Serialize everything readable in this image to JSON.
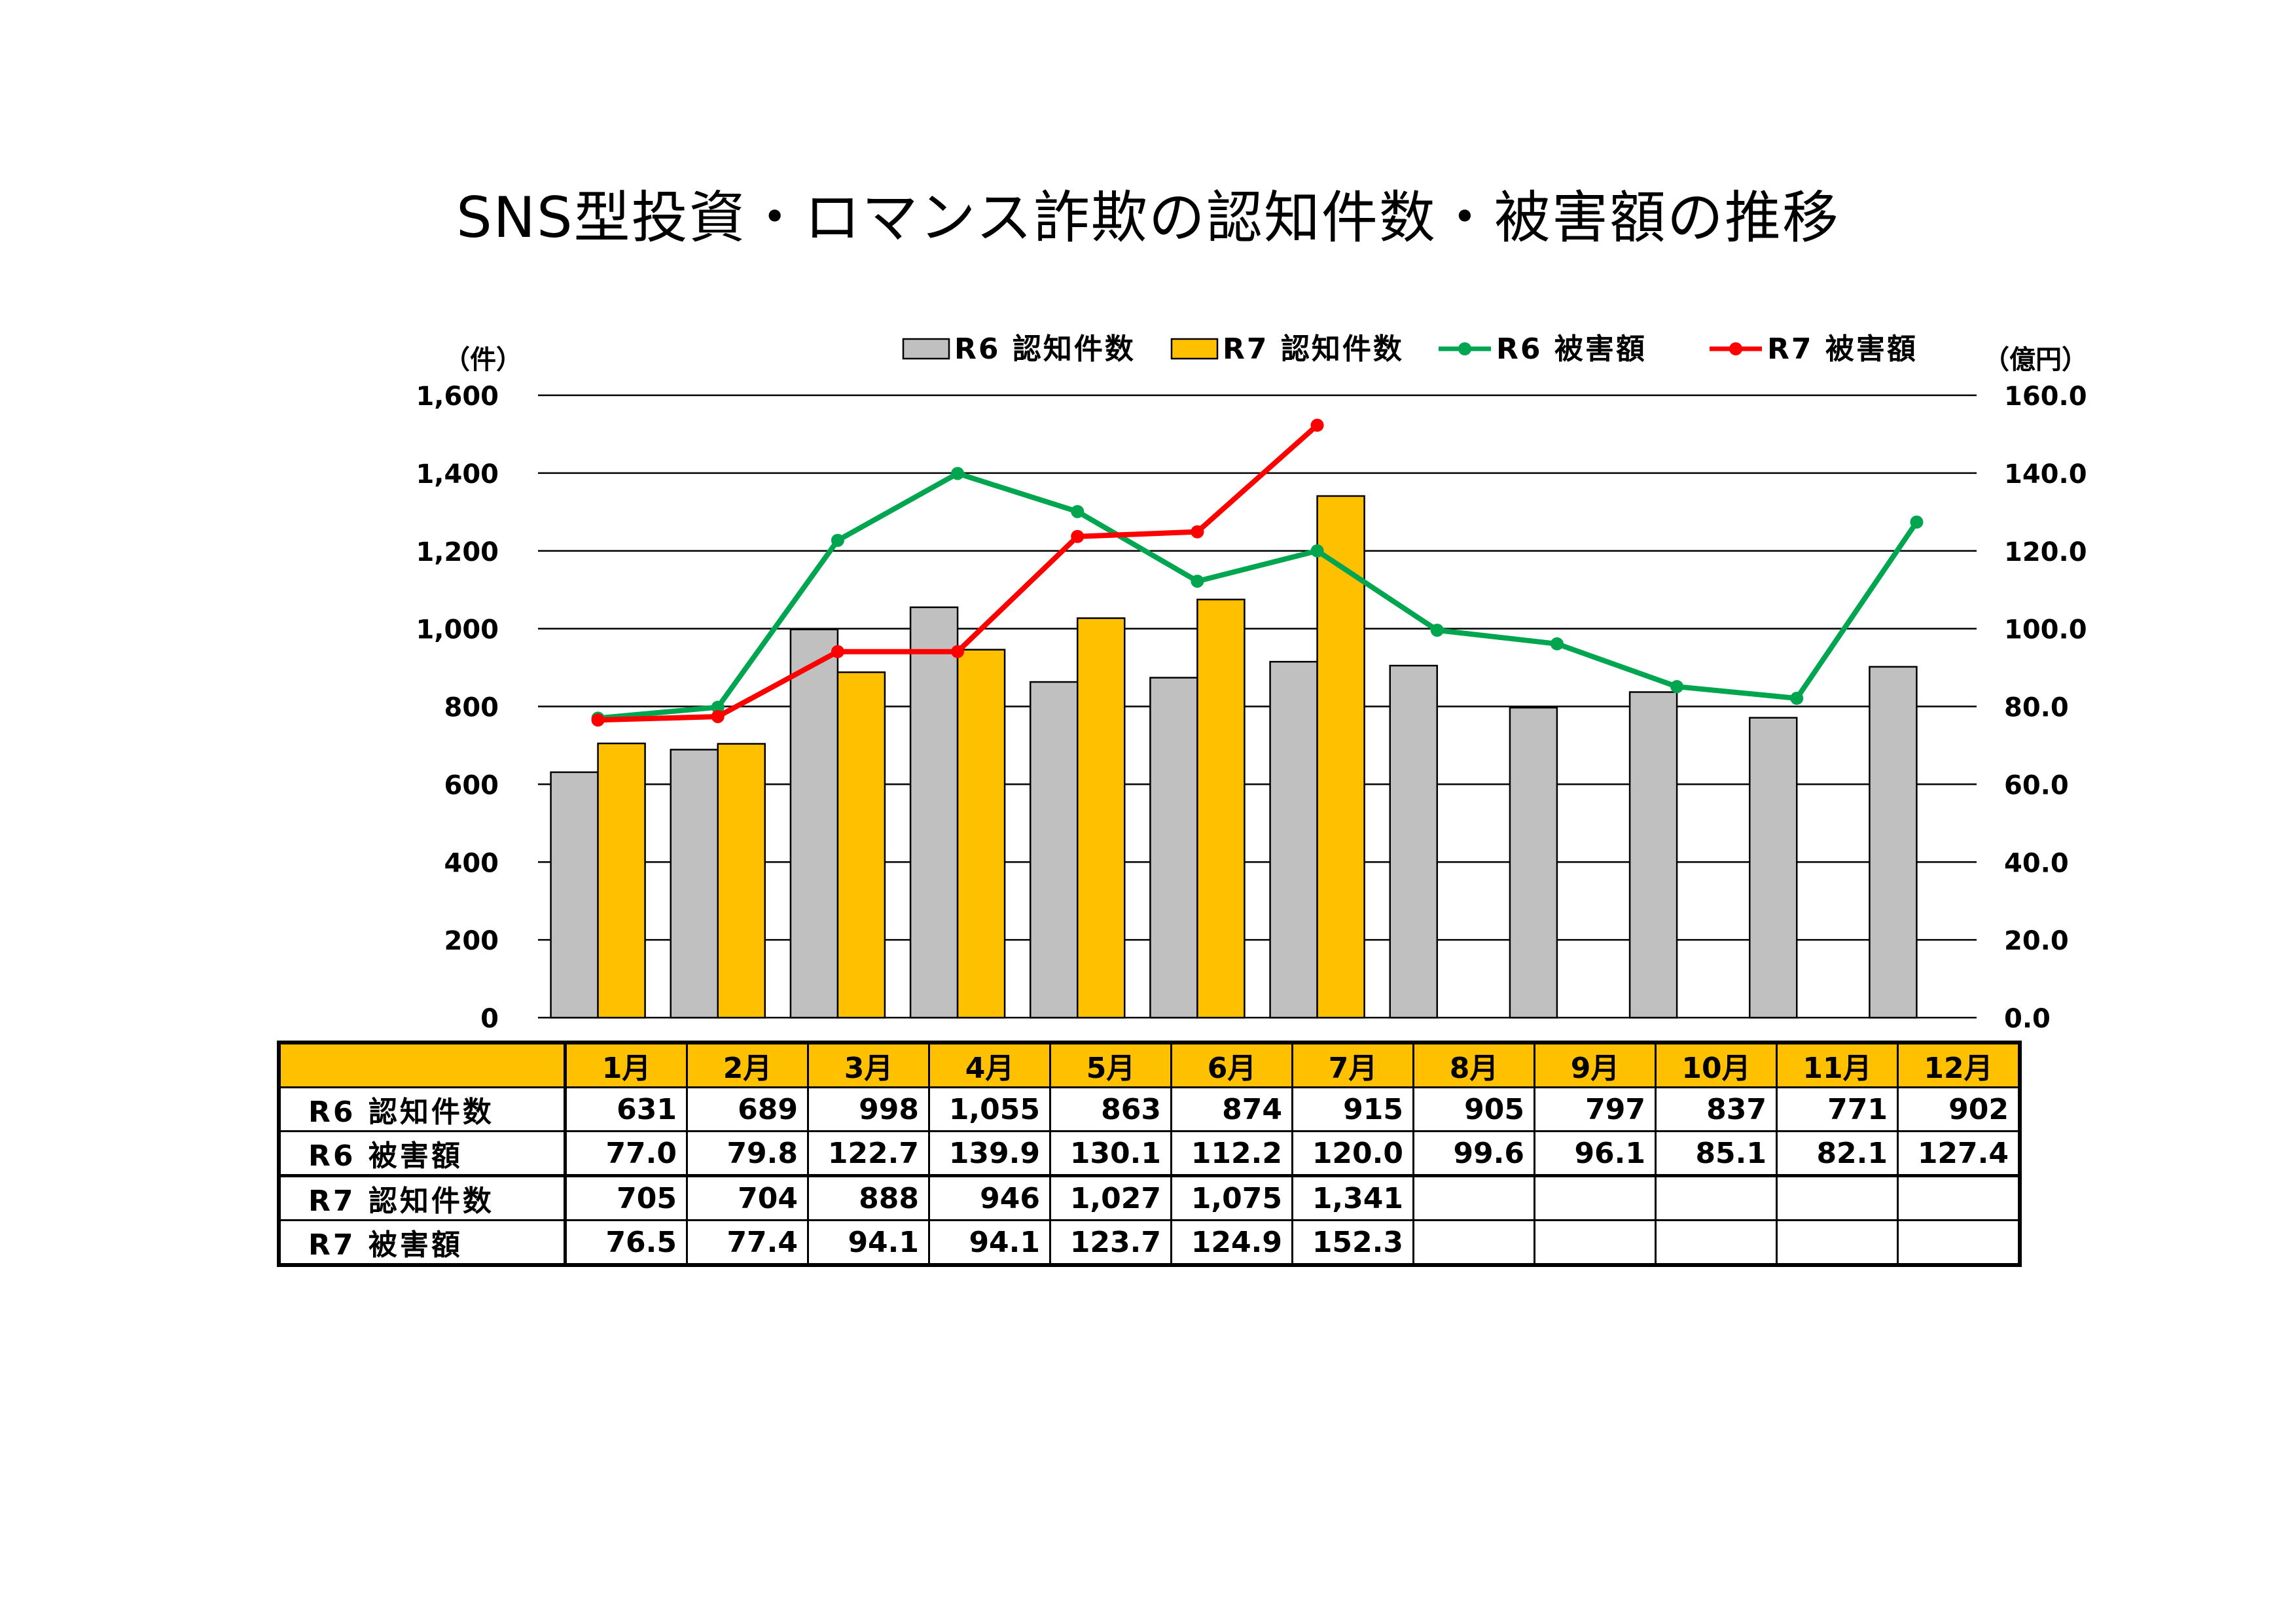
{
  "title": "SNS型投資・ロマンス詐欺の認知件数・被害額の推移",
  "colors": {
    "r6_bar": "#c0c0c0",
    "r7_bar": "#ffc000",
    "r6_line": "#00a550",
    "r7_line": "#ff0000",
    "table_header": "#ffc000"
  },
  "chart_data": {
    "type": "bar",
    "categories": [
      "1月",
      "2月",
      "3月",
      "4月",
      "5月",
      "6月",
      "7月",
      "8月",
      "9月",
      "10月",
      "11月",
      "12月"
    ],
    "left_axis": {
      "unit": "（件）",
      "min": 0,
      "max": 1600,
      "ticks": [
        "0",
        "200",
        "400",
        "600",
        "800",
        "1,000",
        "1,200",
        "1,400",
        "1,600"
      ]
    },
    "right_axis": {
      "unit": "（億円）",
      "min": 0,
      "max": 160,
      "ticks": [
        "0.0",
        "20.0",
        "40.0",
        "60.0",
        "80.0",
        "100.0",
        "120.0",
        "140.0",
        "160.0"
      ]
    },
    "series": [
      {
        "name": "R6 認知件数",
        "kind": "bar",
        "axis": "left",
        "color": "#c0c0c0",
        "values": [
          631,
          689,
          998,
          1055,
          863,
          874,
          915,
          905,
          797,
          837,
          771,
          902
        ]
      },
      {
        "name": "R7 認知件数",
        "kind": "bar",
        "axis": "left",
        "color": "#ffc000",
        "values": [
          705,
          704,
          888,
          946,
          1027,
          1075,
          1341,
          null,
          null,
          null,
          null,
          null
        ]
      },
      {
        "name": "R6 被害額",
        "kind": "line",
        "axis": "right",
        "color": "#00a550",
        "values": [
          77.0,
          79.8,
          122.7,
          139.9,
          130.1,
          112.2,
          120.0,
          99.6,
          96.1,
          85.1,
          82.1,
          127.4
        ]
      },
      {
        "name": "R7 被害額",
        "kind": "line",
        "axis": "right",
        "color": "#ff0000",
        "values": [
          76.5,
          77.4,
          94.1,
          94.1,
          123.7,
          124.9,
          152.3,
          null,
          null,
          null,
          null,
          null
        ]
      }
    ],
    "legend_position": "top"
  },
  "table": {
    "months": [
      "1月",
      "2月",
      "3月",
      "4月",
      "5月",
      "6月",
      "7月",
      "8月",
      "9月",
      "10月",
      "11月",
      "12月"
    ],
    "rows": [
      {
        "label": "R6 認知件数",
        "cells": [
          "631",
          "689",
          "998",
          "1,055",
          "863",
          "874",
          "915",
          "905",
          "797",
          "837",
          "771",
          "902"
        ]
      },
      {
        "label": "R6 被害額",
        "cells": [
          "77.0",
          "79.8",
          "122.7",
          "139.9",
          "130.1",
          "112.2",
          "120.0",
          "99.6",
          "96.1",
          "85.1",
          "82.1",
          "127.4"
        ]
      },
      {
        "label": "R7 認知件数",
        "cells": [
          "705",
          "704",
          "888",
          "946",
          "1,027",
          "1,075",
          "1,341",
          "",
          "",
          "",
          "",
          ""
        ]
      },
      {
        "label": "R7 被害額",
        "cells": [
          "76.5",
          "77.4",
          "94.1",
          "94.1",
          "123.7",
          "124.9",
          "152.3",
          "",
          "",
          "",
          "",
          ""
        ]
      }
    ]
  }
}
